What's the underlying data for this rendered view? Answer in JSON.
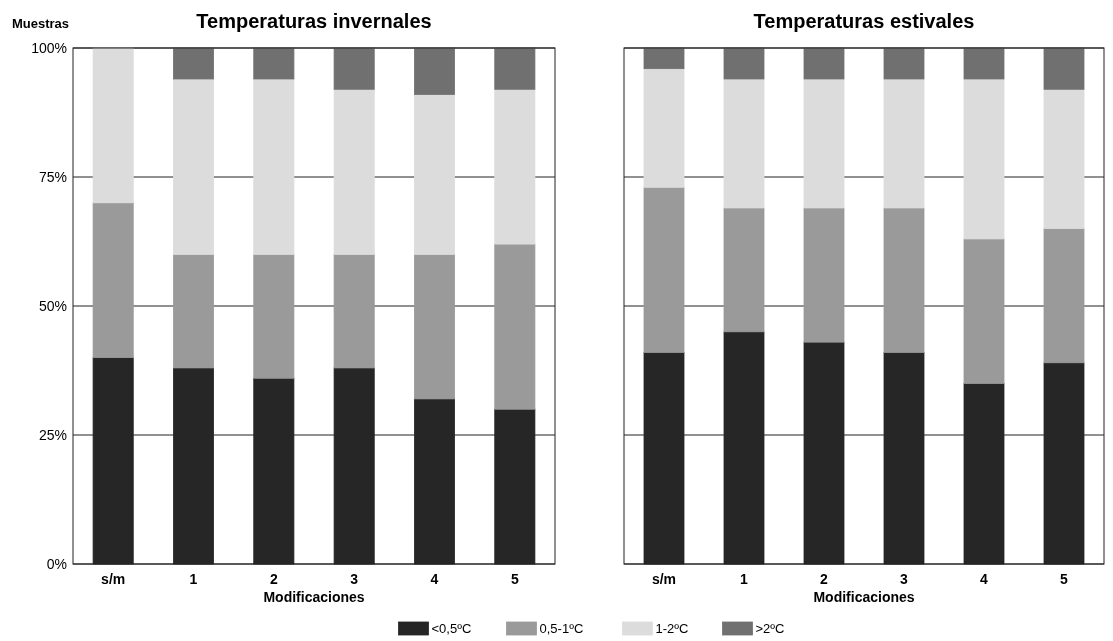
{
  "chart_data": [
    {
      "type": "bar",
      "title": "Temperaturas invernales",
      "ylabel": "Muestras",
      "xlabel": "Modificaciones",
      "categories": [
        "s/m",
        "1",
        "2",
        "3",
        "4",
        "5"
      ],
      "stacked": true,
      "ylim": [
        0,
        100
      ],
      "yticks": [
        {
          "value": 0,
          "label": "0%"
        },
        {
          "value": 25,
          "label": "25%"
        },
        {
          "value": 50,
          "label": "50%"
        },
        {
          "value": 75,
          "label": "75%"
        },
        {
          "value": 100,
          "label": "100%"
        }
      ],
      "grid": "y",
      "legend": "bottom",
      "series": [
        {
          "name": "<0,5ºC",
          "color": "#262626",
          "values": [
            40,
            38,
            36,
            38,
            32,
            30
          ]
        },
        {
          "name": "0,5-1ºC",
          "color": "#9a9a9a",
          "values": [
            30,
            22,
            24,
            22,
            28,
            32
          ]
        },
        {
          "name": "1-2ºC",
          "color": "#dcdcdc",
          "values": [
            30,
            34,
            34,
            32,
            31,
            30
          ]
        },
        {
          "name": ">2ºC",
          "color": "#707070",
          "values": [
            0,
            6,
            6,
            8,
            9,
            8
          ]
        }
      ]
    },
    {
      "type": "bar",
      "title": "Temperaturas estivales",
      "xlabel": "Modificaciones",
      "categories": [
        "s/m",
        "1",
        "2",
        "3",
        "4",
        "5"
      ],
      "stacked": true,
      "ylim": [
        0,
        100
      ],
      "yticks": [
        0,
        25,
        50,
        75,
        100
      ],
      "grid": "y",
      "tick_labels": "x",
      "series": [
        {
          "name": "<0,5ºC",
          "color": "#262626",
          "values": [
            41,
            45,
            43,
            41,
            35,
            39
          ]
        },
        {
          "name": "0,5-1ºC",
          "color": "#9a9a9a",
          "values": [
            32,
            24,
            26,
            28,
            28,
            26
          ]
        },
        {
          "name": "1-2ºC",
          "color": "#dcdcdc",
          "values": [
            23,
            25,
            25,
            25,
            31,
            27
          ]
        },
        {
          "name": ">2ºC",
          "color": "#707070",
          "values": [
            4,
            6,
            6,
            6,
            6,
            8
          ]
        }
      ]
    }
  ]
}
